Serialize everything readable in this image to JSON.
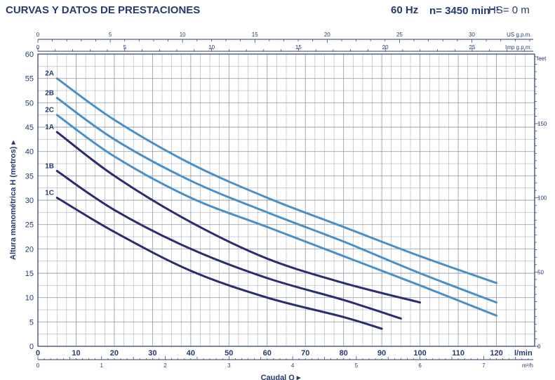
{
  "header": {
    "title": "CURVAS Y DATOS DE PRESTACIONES",
    "frequency": "60 Hz",
    "speed": "n= 3450 min⁻¹",
    "hs": "HS= 0 m"
  },
  "colors": {
    "series_group_1": "#2a2d6e",
    "series_group_2": "#4a90c8",
    "text": "#253a6e",
    "grid": "#9aa0ad"
  },
  "chart_data": {
    "type": "line",
    "title": "",
    "xlabel": "Caudal Q",
    "ylabel": "Altura manométrica H (metros)",
    "xlim": [
      0,
      130
    ],
    "ylim": [
      0,
      60
    ],
    "grid": true,
    "x_axis_unit": "l/min",
    "x_ticks": [
      0,
      10,
      20,
      30,
      40,
      50,
      60,
      70,
      80,
      90,
      100,
      110,
      120
    ],
    "y_ticks": [
      0,
      5,
      10,
      15,
      20,
      25,
      30,
      35,
      40,
      45,
      50,
      55,
      60
    ],
    "secondary_axes": {
      "us_gpm": {
        "label": "US g.p.m.",
        "ticks": [
          0,
          5,
          10,
          15,
          20,
          25,
          30
        ]
      },
      "imp_gpm": {
        "label": "Imp g.p.m.",
        "ticks": [
          0,
          5,
          10,
          15,
          20,
          25
        ]
      },
      "m3h": {
        "label": "m³/h",
        "ticks": [
          0,
          1,
          2,
          3,
          4,
          5,
          6,
          7
        ]
      },
      "feet": {
        "label": "feet",
        "ticks": [
          0,
          50,
          100,
          150
        ]
      }
    },
    "series": [
      {
        "name": "2A",
        "group": 2,
        "x": [
          5,
          20,
          40,
          60,
          80,
          100,
          120
        ],
        "y": [
          55,
          46.5,
          37.5,
          30.5,
          24.5,
          18.5,
          13
        ]
      },
      {
        "name": "2B",
        "group": 2,
        "x": [
          5,
          20,
          40,
          60,
          80,
          100,
          120
        ],
        "y": [
          51,
          42.5,
          34,
          27.5,
          21.5,
          15,
          9
        ]
      },
      {
        "name": "2C",
        "group": 2,
        "x": [
          5,
          20,
          40,
          60,
          80,
          100,
          120
        ],
        "y": [
          47.5,
          39,
          30.5,
          24.5,
          18.5,
          12.5,
          6.3
        ]
      },
      {
        "name": "1A",
        "group": 1,
        "x": [
          5,
          20,
          40,
          60,
          80,
          100
        ],
        "y": [
          44,
          35,
          25.5,
          18,
          13,
          9
        ]
      },
      {
        "name": "1B",
        "group": 1,
        "x": [
          5,
          20,
          40,
          60,
          80,
          95
        ],
        "y": [
          36,
          28,
          20,
          14,
          9.5,
          5.7
        ]
      },
      {
        "name": "1C",
        "group": 1,
        "x": [
          5,
          20,
          40,
          60,
          80,
          90
        ],
        "y": [
          30.5,
          23.5,
          15.5,
          10,
          6,
          3.6
        ]
      }
    ]
  }
}
